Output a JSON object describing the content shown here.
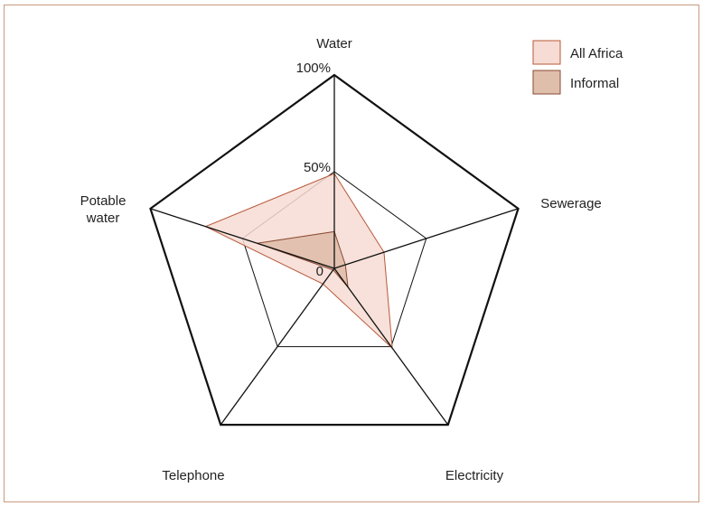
{
  "chart_data": {
    "type": "radar",
    "axes": [
      "Water",
      "Sewerage",
      "Electricity",
      "Telephone",
      "Potable water"
    ],
    "axis_label_lines": [
      [
        "Water"
      ],
      [
        "Sewerage"
      ],
      [
        "Electricity"
      ],
      [
        "Telephone"
      ],
      [
        "Potable",
        "water"
      ]
    ],
    "ticks": [
      "0",
      "50%",
      "100%"
    ],
    "range": [
      0,
      100
    ],
    "series": [
      {
        "name": "All Africa",
        "values": [
          49,
          27,
          51,
          10,
          70
        ],
        "fill": "#f6dcd4",
        "stroke": "#b8583a"
      },
      {
        "name": "Informal",
        "values": [
          19,
          6,
          12,
          1,
          42
        ],
        "fill": "#dfbeab",
        "stroke": "#8a4a33"
      }
    ],
    "legend_position": "top-right",
    "grid": true
  }
}
